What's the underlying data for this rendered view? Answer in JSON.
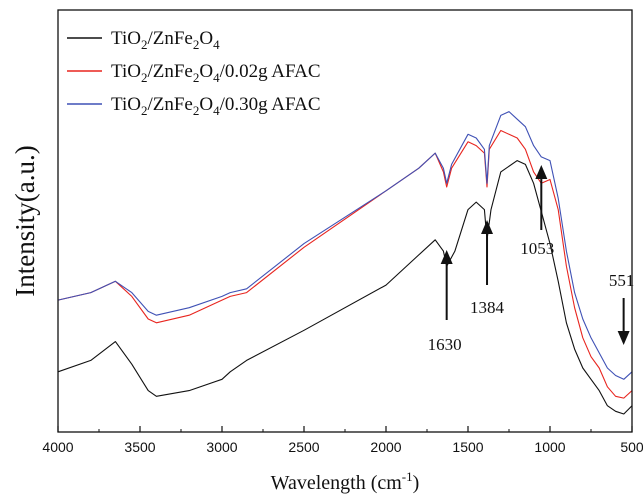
{
  "chart_data": {
    "type": "line",
    "title": "",
    "xlabel": "Wavelength (cm",
    "xlabel_sup": "-1",
    "xlabel_close": ")",
    "ylabel": "Intensity(a.u.)",
    "xlim": [
      4000,
      500
    ],
    "x_reversed": true,
    "y_ticks_shown": false,
    "x_ticks": [
      4000,
      3500,
      3000,
      2500,
      2000,
      1500,
      1000,
      500
    ],
    "legend_position": "top-left",
    "series": [
      {
        "name_parts": [
          [
            "TiO",
            ""
          ],
          [
            "2",
            "sub"
          ],
          [
            "/ZnFe",
            ""
          ],
          [
            "2",
            "sub"
          ],
          [
            "O",
            ""
          ],
          [
            "4",
            "sub"
          ]
        ],
        "color": "#111111",
        "points": [
          [
            4000,
            0.12
          ],
          [
            3800,
            0.15
          ],
          [
            3650,
            0.2
          ],
          [
            3550,
            0.14
          ],
          [
            3450,
            0.07
          ],
          [
            3400,
            0.055
          ],
          [
            3200,
            0.07
          ],
          [
            3000,
            0.1
          ],
          [
            2950,
            0.12
          ],
          [
            2850,
            0.15
          ],
          [
            2500,
            0.23
          ],
          [
            2000,
            0.35
          ],
          [
            1800,
            0.43
          ],
          [
            1700,
            0.47
          ],
          [
            1650,
            0.44
          ],
          [
            1630,
            0.4
          ],
          [
            1580,
            0.44
          ],
          [
            1500,
            0.55
          ],
          [
            1450,
            0.57
          ],
          [
            1400,
            0.55
          ],
          [
            1384,
            0.47
          ],
          [
            1360,
            0.55
          ],
          [
            1300,
            0.65
          ],
          [
            1200,
            0.68
          ],
          [
            1150,
            0.67
          ],
          [
            1100,
            0.62
          ],
          [
            1050,
            0.54
          ],
          [
            1000,
            0.46
          ],
          [
            950,
            0.36
          ],
          [
            900,
            0.25
          ],
          [
            850,
            0.18
          ],
          [
            800,
            0.13
          ],
          [
            750,
            0.1
          ],
          [
            700,
            0.07
          ],
          [
            650,
            0.03
          ],
          [
            600,
            0.015
          ],
          [
            550,
            0.008
          ],
          [
            500,
            0.03
          ]
        ]
      },
      {
        "name_parts": [
          [
            "TiO",
            ""
          ],
          [
            "2",
            "sub"
          ],
          [
            "/ZnFe",
            ""
          ],
          [
            "2",
            "sub"
          ],
          [
            "O",
            ""
          ],
          [
            "4",
            "sub"
          ],
          [
            "/0.02g AFAC",
            ""
          ]
        ],
        "color": "#e8251f",
        "points": [
          [
            4000,
            0.31
          ],
          [
            3800,
            0.33
          ],
          [
            3650,
            0.36
          ],
          [
            3550,
            0.32
          ],
          [
            3450,
            0.26
          ],
          [
            3400,
            0.25
          ],
          [
            3200,
            0.27
          ],
          [
            3000,
            0.31
          ],
          [
            2950,
            0.32
          ],
          [
            2850,
            0.33
          ],
          [
            2500,
            0.45
          ],
          [
            2000,
            0.6
          ],
          [
            1800,
            0.66
          ],
          [
            1700,
            0.7
          ],
          [
            1650,
            0.65
          ],
          [
            1630,
            0.61
          ],
          [
            1600,
            0.66
          ],
          [
            1500,
            0.73
          ],
          [
            1450,
            0.72
          ],
          [
            1400,
            0.7
          ],
          [
            1384,
            0.61
          ],
          [
            1370,
            0.71
          ],
          [
            1300,
            0.76
          ],
          [
            1250,
            0.75
          ],
          [
            1200,
            0.74
          ],
          [
            1150,
            0.71
          ],
          [
            1100,
            0.65
          ],
          [
            1053,
            0.62
          ],
          [
            1000,
            0.63
          ],
          [
            950,
            0.55
          ],
          [
            900,
            0.4
          ],
          [
            850,
            0.29
          ],
          [
            800,
            0.21
          ],
          [
            750,
            0.16
          ],
          [
            700,
            0.13
          ],
          [
            650,
            0.08
          ],
          [
            600,
            0.055
          ],
          [
            550,
            0.05
          ],
          [
            500,
            0.07
          ]
        ]
      },
      {
        "name_parts": [
          [
            "TiO",
            ""
          ],
          [
            "2",
            "sub"
          ],
          [
            "/ZnFe",
            ""
          ],
          [
            "2",
            "sub"
          ],
          [
            "O",
            ""
          ],
          [
            "4",
            "sub"
          ],
          [
            "/0.30g AFAC",
            ""
          ]
        ],
        "color": "#3f51b5",
        "points": [
          [
            4000,
            0.31
          ],
          [
            3800,
            0.33
          ],
          [
            3650,
            0.36
          ],
          [
            3550,
            0.33
          ],
          [
            3450,
            0.28
          ],
          [
            3400,
            0.27
          ],
          [
            3200,
            0.29
          ],
          [
            3000,
            0.32
          ],
          [
            2950,
            0.33
          ],
          [
            2850,
            0.34
          ],
          [
            2500,
            0.46
          ],
          [
            2000,
            0.6
          ],
          [
            1800,
            0.66
          ],
          [
            1700,
            0.7
          ],
          [
            1650,
            0.66
          ],
          [
            1630,
            0.62
          ],
          [
            1600,
            0.67
          ],
          [
            1500,
            0.75
          ],
          [
            1450,
            0.74
          ],
          [
            1400,
            0.71
          ],
          [
            1384,
            0.62
          ],
          [
            1370,
            0.72
          ],
          [
            1300,
            0.8
          ],
          [
            1250,
            0.81
          ],
          [
            1200,
            0.79
          ],
          [
            1150,
            0.77
          ],
          [
            1100,
            0.72
          ],
          [
            1053,
            0.69
          ],
          [
            1000,
            0.68
          ],
          [
            950,
            0.58
          ],
          [
            900,
            0.44
          ],
          [
            850,
            0.33
          ],
          [
            800,
            0.26
          ],
          [
            750,
            0.21
          ],
          [
            700,
            0.17
          ],
          [
            650,
            0.13
          ],
          [
            600,
            0.11
          ],
          [
            550,
            0.1
          ],
          [
            500,
            0.12
          ]
        ]
      }
    ],
    "annotations": [
      {
        "label": "1630",
        "x": 1630
      },
      {
        "label": "1384",
        "x": 1384
      },
      {
        "label": "1053",
        "x": 1053
      },
      {
        "label": "551",
        "x": 551
      }
    ]
  }
}
